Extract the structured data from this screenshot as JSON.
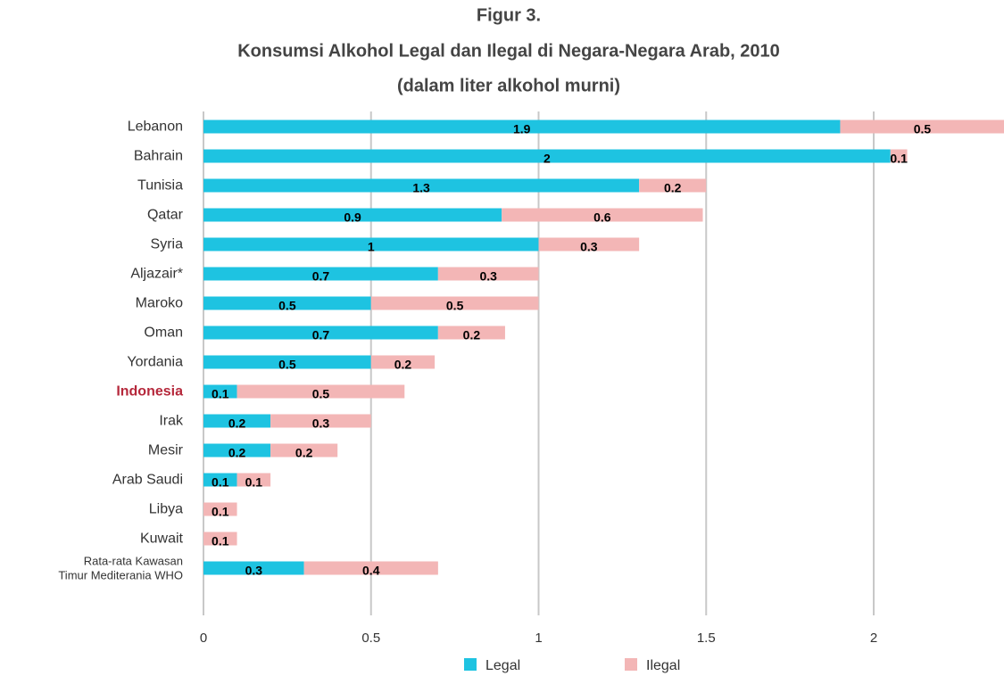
{
  "chart_data": {
    "type": "stacked-barh",
    "title": "Figur 3.",
    "subtitle": "Konsumsi Alkohol Legal dan Ilegal di Negara-Negara Arab, 2010",
    "subtitle2": "(dalam liter alkohol murni)",
    "categories": [
      "Lebanon",
      "Bahrain",
      "Tunisia",
      "Qatar",
      "Syria",
      "Aljazair*",
      "Maroko",
      "Oman",
      "Yordania",
      "Indonesia",
      "Irak",
      "Mesir",
      "Arab Saudi",
      "Libya",
      "Kuwait",
      "Rata-rata Kawasan Timur Mediterania WHO"
    ],
    "series": [
      {
        "name": "Legal",
        "color": "#1ec3e1",
        "values": [
          1.9,
          2.05,
          1.3,
          0.89,
          1,
          0.7,
          0.5,
          0.7,
          0.5,
          0.1,
          0.2,
          0.2,
          0.1,
          0,
          0,
          0.3
        ],
        "value_labels": [
          "1.9",
          "2",
          "1.3",
          "0.9",
          "1",
          "0.7",
          "0.5",
          "0.7",
          "0.5",
          "0.1",
          "0.2",
          "0.2",
          "0.1",
          null,
          null,
          "0.3"
        ]
      },
      {
        "name": "Ilegal",
        "color": "#f3b6b6",
        "values": [
          0.49,
          0.05,
          0.2,
          0.6,
          0.3,
          0.3,
          0.5,
          0.2,
          0.19,
          0.5,
          0.3,
          0.2,
          0.1,
          0.1,
          0.1,
          0.4
        ],
        "value_labels": [
          "0.5",
          "0.1",
          "0.2",
          "0.6",
          "0.3",
          "0.3",
          "0.5",
          "0.2",
          "0.2",
          "0.5",
          "0.3",
          "0.2",
          "0.1",
          "0.1",
          "0.1",
          "0.4"
        ]
      }
    ],
    "xlim": [
      0,
      2.4
    ],
    "xticks": [
      0,
      0.5,
      1,
      1.5,
      2
    ],
    "grid": true,
    "legend": "bottom",
    "highlight": {
      "category": "Indonesia",
      "color": "#b5283b"
    }
  }
}
